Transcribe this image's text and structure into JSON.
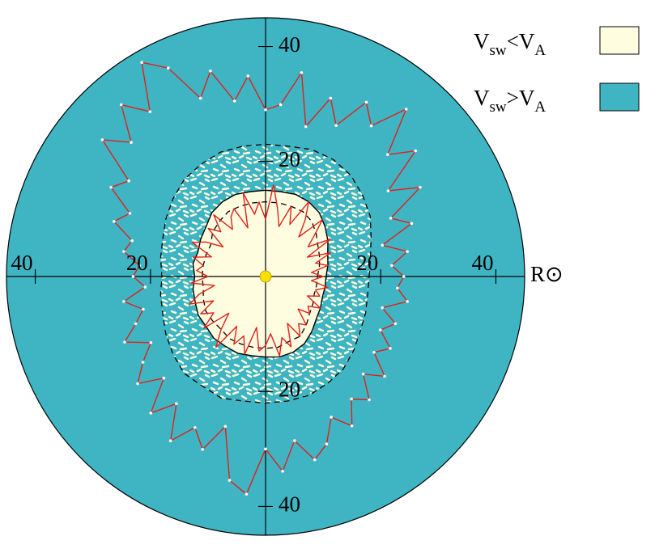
{
  "chart_data": {
    "type": "polar",
    "xlim": [
      -45,
      45
    ],
    "ylim": [
      -45,
      45
    ],
    "xticks": [
      {
        "value": -40,
        "label": "40"
      },
      {
        "value": -20,
        "label": "20"
      },
      20,
      40
    ],
    "yticks": [
      {
        "value": -40,
        "label": "40"
      },
      {
        "value": -20,
        "label": "20"
      },
      20,
      40
    ],
    "unit_label": "R⊙",
    "background_color": "#3fb5c4",
    "legend": [
      {
        "parts": [
          "V",
          "sw",
          "<",
          "V",
          "A"
        ],
        "color": "#fffde0"
      },
      {
        "parts": [
          "V",
          "sw",
          ">",
          "V",
          "A"
        ],
        "color": "#3fb5c4"
      }
    ],
    "series": [
      {
        "role": "speckle-outer",
        "color": "#000000",
        "dashed": true,
        "theta": [
          0,
          10,
          20,
          30,
          40,
          50,
          60,
          70,
          80,
          90,
          100,
          110,
          120,
          130,
          140,
          150,
          160,
          170,
          180,
          190,
          200,
          210,
          220,
          230,
          240,
          250,
          260,
          270,
          280,
          290,
          300,
          310,
          320,
          330,
          340,
          350
        ],
        "values": [
          18,
          18.5,
          19.5,
          21,
          22,
          23,
          23.5,
          23.5,
          23,
          23,
          23,
          23,
          22.5,
          22,
          21,
          20,
          19,
          18.5,
          18,
          18.5,
          19,
          20,
          21,
          22,
          22,
          22.5,
          22,
          22,
          22,
          22,
          21.5,
          21,
          20,
          19,
          18.5,
          18
        ]
      },
      {
        "role": "mean",
        "color": "#000000",
        "dashed": false,
        "theta": [
          0,
          10,
          20,
          30,
          40,
          50,
          60,
          70,
          80,
          90,
          100,
          110,
          120,
          130,
          140,
          150,
          160,
          170,
          180,
          190,
          200,
          210,
          220,
          230,
          240,
          250,
          260,
          270,
          280,
          290,
          300,
          310,
          320,
          330,
          340,
          350
        ],
        "values": [
          10.5,
          11,
          11.5,
          12.5,
          13.5,
          14.5,
          15,
          15.2,
          15,
          15,
          15,
          15.2,
          15,
          14.5,
          13.5,
          13,
          12.5,
          12.8,
          12.3,
          12.8,
          13,
          13.5,
          13.5,
          14,
          14,
          14.2,
          14,
          14,
          14.2,
          14,
          13.5,
          12.5,
          11.5,
          11,
          10.5,
          10.5
        ]
      },
      {
        "role": "inner-dashed",
        "color": "#000000",
        "dashed": true,
        "theta": [
          0,
          10,
          20,
          30,
          40,
          50,
          60,
          70,
          80,
          90,
          100,
          110,
          120,
          130,
          140,
          150,
          160,
          170,
          180,
          190,
          200,
          210,
          220,
          230,
          240,
          250,
          260,
          270,
          280,
          290,
          300,
          310,
          320,
          330,
          340,
          350
        ],
        "values": [
          9,
          9.5,
          10,
          10.5,
          11.5,
          12.5,
          13,
          13,
          13,
          13,
          13,
          13,
          13,
          12.5,
          12,
          11,
          11,
          11,
          11,
          11,
          11.5,
          12,
          12,
          12,
          12.5,
          12.5,
          12.5,
          12.5,
          12.5,
          12,
          12,
          11,
          10,
          9.5,
          9,
          9
        ]
      },
      {
        "role": "maximum",
        "color": "#e0201a",
        "dashed": false,
        "markers": true,
        "theta": [
          0,
          5,
          10,
          15,
          20,
          25,
          30,
          35,
          40,
          45,
          50,
          55,
          60,
          65,
          70,
          75,
          80,
          85,
          90,
          95,
          100,
          105,
          110,
          115,
          120,
          125,
          130,
          135,
          140,
          145,
          150,
          155,
          160,
          165,
          170,
          175,
          180,
          185,
          190,
          195,
          200,
          205,
          210,
          215,
          220,
          225,
          230,
          235,
          240,
          245,
          250,
          255,
          260,
          265,
          270,
          275,
          280,
          285,
          290,
          295,
          300,
          305,
          310,
          315,
          320,
          325,
          330,
          335,
          340,
          345,
          350,
          355
        ],
        "values": [
          24,
          22,
          25,
          21,
          27,
          24,
          31,
          26,
          34,
          30,
          38,
          32,
          35,
          29,
          33,
          27,
          36,
          30,
          29,
          35,
          31,
          37,
          33,
          40,
          43,
          35,
          39,
          33,
          37,
          29,
          31,
          26,
          28,
          24,
          25,
          22,
          23,
          21,
          25,
          22,
          24,
          27,
          23,
          26,
          29,
          25,
          31,
          27,
          33,
          29,
          32,
          27,
          36,
          38,
          30,
          34,
          29,
          33,
          31,
          27,
          30,
          26,
          28,
          24,
          27,
          23,
          25,
          22,
          24,
          21,
          25,
          23
        ]
      },
      {
        "role": "minimum",
        "color": "#e0201a",
        "dashed": false,
        "theta": [
          0,
          5,
          10,
          15,
          20,
          25,
          30,
          35,
          40,
          45,
          50,
          55,
          60,
          65,
          70,
          75,
          80,
          85,
          90,
          95,
          100,
          105,
          110,
          115,
          120,
          125,
          130,
          135,
          140,
          145,
          150,
          155,
          160,
          165,
          170,
          175,
          180,
          185,
          190,
          195,
          200,
          205,
          210,
          215,
          220,
          225,
          230,
          235,
          240,
          245,
          250,
          255,
          260,
          265,
          270,
          275,
          280,
          285,
          290,
          295,
          300,
          305,
          310,
          315,
          320,
          325,
          330,
          335,
          340,
          345,
          350,
          355
        ],
        "values": [
          10,
          8,
          11,
          9,
          12,
          8,
          13,
          9,
          11,
          14,
          9,
          12,
          15,
          10,
          13,
          9,
          12,
          16,
          10,
          13,
          11,
          15,
          9,
          13,
          12,
          10,
          14,
          11,
          13,
          9,
          12,
          14,
          10,
          13,
          11,
          12,
          10,
          13,
          9,
          12,
          14,
          10,
          13,
          11,
          14,
          9,
          12,
          15,
          10,
          13,
          11,
          14,
          9,
          13,
          12,
          10,
          14,
          11,
          13,
          9,
          12,
          10,
          11,
          8,
          10,
          9,
          11,
          8,
          10,
          9,
          11,
          8
        ]
      }
    ]
  }
}
